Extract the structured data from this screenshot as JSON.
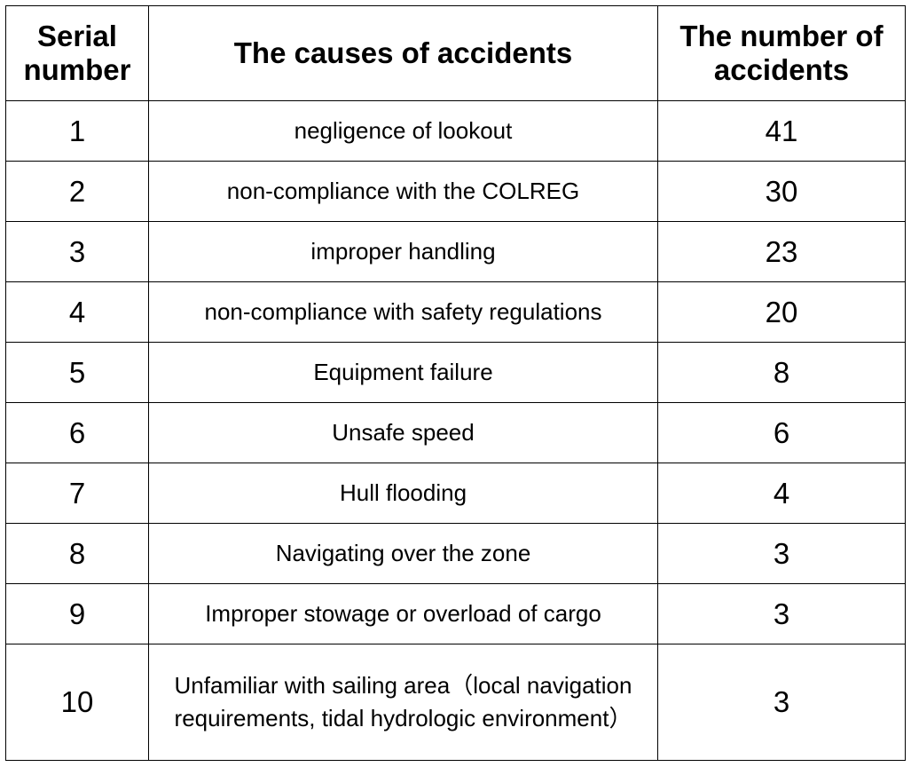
{
  "table": {
    "headers": {
      "serial": "Serial number",
      "cause": "The causes of accidents",
      "count": "The number of accidents"
    },
    "rows": [
      {
        "serial": "1",
        "cause": "negligence of lookout",
        "count": "41"
      },
      {
        "serial": "2",
        "cause": "non-compliance with the COLREG",
        "count": "30"
      },
      {
        "serial": "3",
        "cause": "improper handling",
        "count": "23"
      },
      {
        "serial": "4",
        "cause": "non-compliance with safety regulations",
        "count": "20"
      },
      {
        "serial": "5",
        "cause": "Equipment failure",
        "count": "8"
      },
      {
        "serial": "6",
        "cause": "Unsafe speed",
        "count": "6"
      },
      {
        "serial": "7",
        "cause": "Hull flooding",
        "count": "4"
      },
      {
        "serial": "8",
        "cause": "Navigating over the zone",
        "count": "3"
      },
      {
        "serial": "9",
        "cause": "Improper stowage or overload of cargo",
        "count": "3"
      },
      {
        "serial": "10",
        "cause": "Unfamiliar with sailing area（local navigation requirements, tidal hydrologic environment）",
        "count": "3"
      }
    ]
  }
}
